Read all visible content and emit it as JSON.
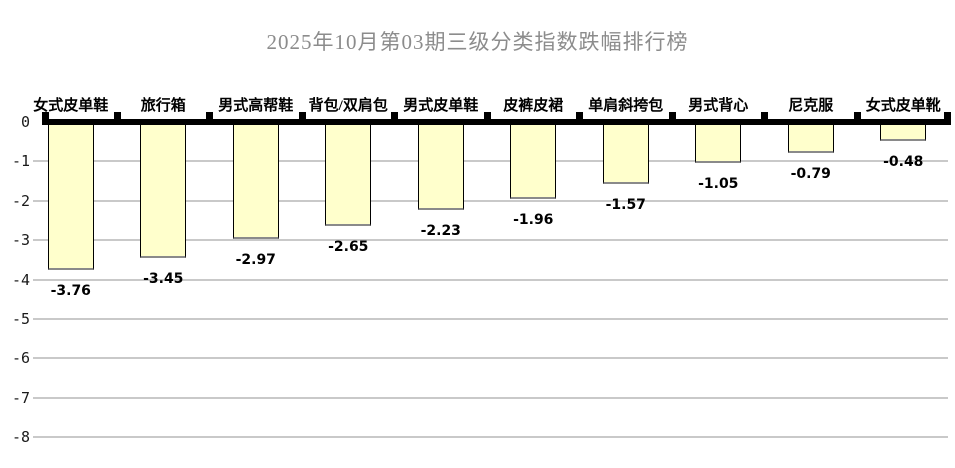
{
  "title": "2025年10月第03期三级分类指数跌幅排行榜",
  "colors": {
    "background": "#FFFFFF",
    "bar_fill": "#FFFFCC",
    "bar_border": "#000000",
    "bar_bottom_edge": "#8A8A8A",
    "gridline": "#C9C9C9",
    "axis": "#000000",
    "title_text": "#8C8C8C",
    "label_text": "#000000"
  },
  "chart_data": {
    "type": "bar",
    "title": "2025年10月第03期三级分类指数跌幅排行榜",
    "categories": [
      "女式皮单鞋",
      "旅行箱",
      "男式高帮鞋",
      "背包/双肩包",
      "男式皮单鞋",
      "皮裤皮裙",
      "单肩斜挎包",
      "男式背心",
      "尼克服",
      "女式皮单靴"
    ],
    "values": [
      -3.76,
      -3.45,
      -2.97,
      -2.65,
      -2.23,
      -1.96,
      -1.57,
      -1.05,
      -0.79,
      -0.48
    ],
    "value_labels": [
      "-3.76",
      "-3.45",
      "-2.97",
      "-2.65",
      "-2.23",
      "-1.96",
      "-1.57",
      "-1.05",
      "-0.79",
      "-0.48"
    ],
    "y_tick_labels": [
      "0",
      "-1",
      "-2",
      "-3",
      "-4",
      "-5",
      "-6",
      "-7",
      "-8"
    ],
    "y_tick_values": [
      0,
      -1,
      -2,
      -3,
      -4,
      -5,
      -6,
      -7,
      -8
    ],
    "ylim": [
      -8,
      0
    ],
    "xlabel": "",
    "ylabel": "",
    "grid": true,
    "legend": false,
    "bar_orientation": "vertical-down",
    "category_label_position": "above-axis",
    "value_label_position": "below-bar"
  }
}
